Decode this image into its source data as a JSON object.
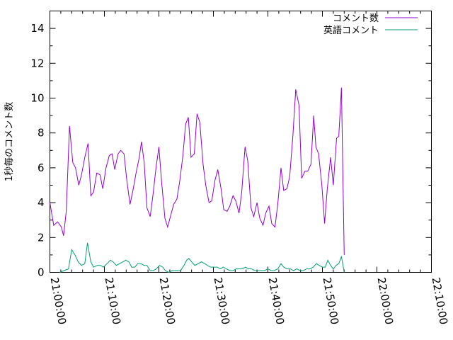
{
  "chart_data": {
    "type": "line",
    "ylabel": "1秒毎のコメント数",
    "ylim": [
      0,
      15
    ],
    "yticks": [
      "0",
      "2",
      "4",
      "6",
      "8",
      "10",
      "12",
      "14"
    ],
    "xlim_minutes": [
      0,
      70
    ],
    "xticks": [
      "21:00:00",
      "21:10:00",
      "21:20:00",
      "21:30:00",
      "21:40:00",
      "21:50:00",
      "22:00:00",
      "22:10:00"
    ],
    "legend_position": "top-right",
    "grid": false,
    "series": [
      {
        "name": "コメント数",
        "color": "#9400d3",
        "points": [
          [
            0.0,
            4.0
          ],
          [
            0.7,
            2.7
          ],
          [
            1.4,
            2.9
          ],
          [
            2.1,
            2.6
          ],
          [
            2.5,
            2.1
          ],
          [
            3.0,
            3.5
          ],
          [
            3.6,
            8.4
          ],
          [
            4.2,
            6.3
          ],
          [
            4.7,
            6.0
          ],
          [
            5.3,
            5.0
          ],
          [
            5.8,
            5.6
          ],
          [
            6.4,
            6.6
          ],
          [
            7.0,
            7.4
          ],
          [
            7.5,
            4.4
          ],
          [
            8.0,
            4.6
          ],
          [
            8.6,
            5.7
          ],
          [
            9.2,
            5.6
          ],
          [
            9.7,
            4.8
          ],
          [
            10.3,
            6.0
          ],
          [
            10.9,
            6.7
          ],
          [
            11.4,
            6.8
          ],
          [
            11.9,
            5.9
          ],
          [
            12.5,
            6.8
          ],
          [
            13.0,
            7.0
          ],
          [
            13.6,
            6.8
          ],
          [
            14.1,
            5.3
          ],
          [
            14.7,
            3.9
          ],
          [
            15.3,
            4.8
          ],
          [
            15.8,
            5.7
          ],
          [
            16.4,
            6.6
          ],
          [
            16.8,
            7.5
          ],
          [
            17.3,
            6.3
          ],
          [
            17.8,
            3.7
          ],
          [
            18.4,
            3.2
          ],
          [
            18.9,
            4.4
          ],
          [
            19.5,
            6.1
          ],
          [
            20.0,
            7.2
          ],
          [
            20.5,
            5.2
          ],
          [
            21.1,
            3.1
          ],
          [
            21.6,
            2.6
          ],
          [
            22.2,
            3.3
          ],
          [
            22.7,
            3.9
          ],
          [
            23.3,
            4.2
          ],
          [
            23.8,
            5.2
          ],
          [
            24.4,
            6.7
          ],
          [
            24.9,
            8.5
          ],
          [
            25.4,
            8.9
          ],
          [
            25.9,
            6.6
          ],
          [
            26.5,
            6.8
          ],
          [
            27.0,
            9.1
          ],
          [
            27.5,
            8.6
          ],
          [
            28.1,
            6.2
          ],
          [
            28.6,
            5.0
          ],
          [
            29.2,
            4.0
          ],
          [
            29.7,
            4.1
          ],
          [
            30.3,
            5.3
          ],
          [
            30.8,
            5.9
          ],
          [
            31.4,
            4.8
          ],
          [
            31.9,
            3.6
          ],
          [
            32.5,
            3.5
          ],
          [
            33.0,
            3.8
          ],
          [
            33.6,
            4.4
          ],
          [
            34.1,
            4.1
          ],
          [
            34.7,
            3.4
          ],
          [
            35.2,
            4.6
          ],
          [
            35.8,
            7.2
          ],
          [
            36.3,
            6.4
          ],
          [
            36.9,
            3.7
          ],
          [
            37.4,
            3.2
          ],
          [
            38.0,
            4.0
          ],
          [
            38.5,
            3.1
          ],
          [
            39.1,
            2.7
          ],
          [
            39.6,
            3.4
          ],
          [
            40.2,
            3.8
          ],
          [
            40.7,
            2.8
          ],
          [
            41.3,
            2.6
          ],
          [
            41.8,
            3.9
          ],
          [
            42.4,
            6.0
          ],
          [
            42.9,
            4.7
          ],
          [
            43.5,
            4.8
          ],
          [
            44.0,
            5.5
          ],
          [
            44.6,
            7.9
          ],
          [
            45.1,
            10.5
          ],
          [
            45.7,
            9.6
          ],
          [
            46.2,
            5.4
          ],
          [
            46.8,
            5.8
          ],
          [
            47.3,
            5.8
          ],
          [
            47.9,
            6.2
          ],
          [
            48.4,
            9.0
          ],
          [
            48.8,
            7.2
          ],
          [
            49.3,
            6.8
          ],
          [
            49.9,
            5.0
          ],
          [
            50.4,
            2.8
          ],
          [
            50.9,
            4.8
          ],
          [
            51.5,
            6.6
          ],
          [
            52.0,
            5.0
          ],
          [
            52.6,
            7.7
          ],
          [
            53.0,
            7.8
          ],
          [
            53.5,
            10.6
          ],
          [
            54.0,
            1.0
          ]
        ]
      },
      {
        "name": "英語コメント",
        "color": "#009e73",
        "points": [
          [
            1.8,
            0.0
          ],
          [
            2.6,
            0.1
          ],
          [
            3.4,
            0.2
          ],
          [
            4.0,
            1.3
          ],
          [
            4.6,
            1.0
          ],
          [
            5.2,
            0.6
          ],
          [
            5.8,
            0.4
          ],
          [
            6.4,
            0.5
          ],
          [
            6.9,
            1.7
          ],
          [
            7.5,
            0.6
          ],
          [
            8.0,
            0.3
          ],
          [
            8.7,
            0.4
          ],
          [
            9.3,
            0.4
          ],
          [
            9.8,
            0.3
          ],
          [
            10.5,
            0.5
          ],
          [
            11.1,
            0.7
          ],
          [
            11.6,
            0.6
          ],
          [
            12.2,
            0.4
          ],
          [
            12.8,
            0.5
          ],
          [
            13.4,
            0.6
          ],
          [
            13.9,
            0.7
          ],
          [
            14.5,
            0.6
          ],
          [
            15.0,
            0.3
          ],
          [
            15.6,
            0.3
          ],
          [
            16.1,
            0.5
          ],
          [
            16.7,
            0.5
          ],
          [
            17.3,
            0.4
          ],
          [
            17.8,
            0.4
          ],
          [
            18.4,
            0.1
          ],
          [
            19.0,
            0.1
          ],
          [
            19.5,
            0.2
          ],
          [
            20.1,
            0.4
          ],
          [
            20.7,
            0.3
          ],
          [
            21.2,
            0.1
          ],
          [
            21.8,
            0.0
          ],
          [
            22.4,
            0.1
          ],
          [
            22.9,
            0.1
          ],
          [
            23.5,
            0.1
          ],
          [
            24.0,
            0.1
          ],
          [
            24.6,
            0.4
          ],
          [
            25.1,
            0.7
          ],
          [
            25.5,
            0.8
          ],
          [
            26.0,
            0.6
          ],
          [
            26.6,
            0.4
          ],
          [
            27.2,
            0.5
          ],
          [
            27.8,
            0.6
          ],
          [
            28.4,
            0.5
          ],
          [
            28.9,
            0.4
          ],
          [
            29.5,
            0.3
          ],
          [
            30.1,
            0.3
          ],
          [
            30.7,
            0.3
          ],
          [
            31.3,
            0.2
          ],
          [
            31.8,
            0.3
          ],
          [
            32.4,
            0.2
          ],
          [
            33.0,
            0.1
          ],
          [
            33.6,
            0.1
          ],
          [
            34.2,
            0.2
          ],
          [
            34.7,
            0.2
          ],
          [
            35.3,
            0.2
          ],
          [
            35.9,
            0.3
          ],
          [
            36.4,
            0.2
          ],
          [
            37.0,
            0.2
          ],
          [
            37.6,
            0.1
          ],
          [
            38.2,
            0.1
          ],
          [
            38.8,
            0.1
          ],
          [
            39.4,
            0.1
          ],
          [
            40.0,
            0.2
          ],
          [
            40.6,
            0.1
          ],
          [
            41.2,
            0.1
          ],
          [
            41.8,
            0.2
          ],
          [
            42.4,
            0.5
          ],
          [
            42.9,
            0.3
          ],
          [
            43.5,
            0.2
          ],
          [
            44.1,
            0.2
          ],
          [
            44.7,
            0.1
          ],
          [
            45.3,
            0.2
          ],
          [
            45.9,
            0.1
          ],
          [
            46.5,
            0.1
          ],
          [
            47.1,
            0.2
          ],
          [
            47.7,
            0.2
          ],
          [
            48.3,
            0.3
          ],
          [
            48.9,
            0.5
          ],
          [
            49.4,
            0.4
          ],
          [
            50.0,
            0.3
          ],
          [
            50.5,
            0.3
          ],
          [
            51.0,
            0.7
          ],
          [
            51.5,
            0.4
          ],
          [
            52.0,
            0.2
          ],
          [
            52.5,
            0.4
          ],
          [
            53.0,
            0.5
          ],
          [
            53.5,
            0.9
          ],
          [
            54.0,
            0.0
          ]
        ]
      }
    ]
  }
}
